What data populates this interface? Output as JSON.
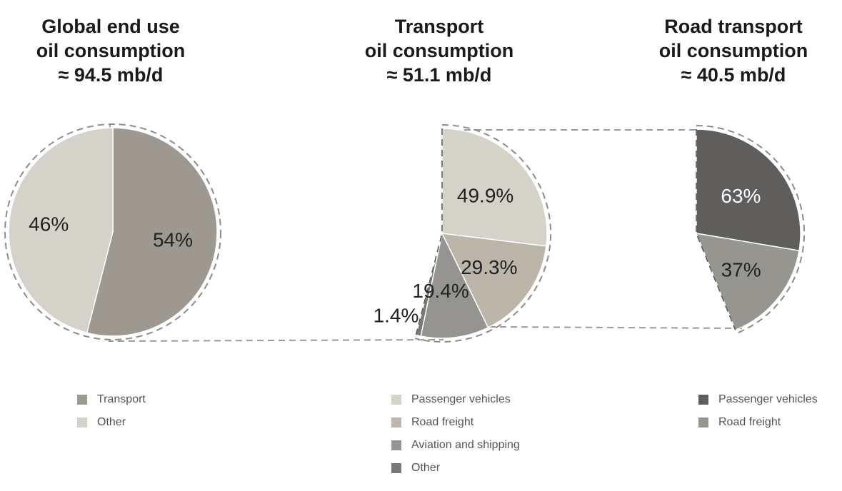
{
  "colors": {
    "dashed_outline": "#8c8c8c",
    "connector": "#9a9a9a",
    "label_dark": "#222222",
    "label_light": "#ffffff"
  },
  "chart_data": [
    {
      "type": "pie",
      "title": "Global end use oil consumption ≈ 94.5 mb/d",
      "title_lines": [
        "Global end use",
        "oil consumption",
        "≈ 94.5 mb/d"
      ],
      "slices": [
        {
          "name": "Transport",
          "value": 54,
          "label": "54%",
          "color": "#9d9890"
        },
        {
          "name": "Other",
          "value": 46,
          "label": "46%",
          "color": "#d5d2ca"
        }
      ]
    },
    {
      "type": "pie",
      "title": "Transport oil consumption ≈ 51.1 mb/d",
      "title_lines": [
        "Transport",
        "oil consumption",
        "≈ 51.1 mb/d"
      ],
      "slices": [
        {
          "name": "Passenger vehicles",
          "value": 49.9,
          "label": "49.9%",
          "color": "#d5d2ca"
        },
        {
          "name": "Road freight",
          "value": 29.3,
          "label": "29.3%",
          "color": "#bcb5aa"
        },
        {
          "name": "Aviation and shipping",
          "value": 19.4,
          "label": "19.4%",
          "color": "#969490"
        },
        {
          "name": "Other",
          "value": 1.4,
          "label": "1.4%",
          "color": "#7a7975"
        }
      ]
    },
    {
      "type": "pie",
      "title": "Road transport oil consumption ≈ 40.5 mb/d",
      "title_lines": [
        "Road transport",
        "oil consumption",
        "≈ 40.5 mb/d"
      ],
      "slices": [
        {
          "name": "Passenger vehicles",
          "value": 63,
          "label": "63%",
          "color": "#5f5e5c"
        },
        {
          "name": "Road freight",
          "value": 37,
          "label": "37%",
          "color": "#97958f"
        }
      ]
    }
  ]
}
